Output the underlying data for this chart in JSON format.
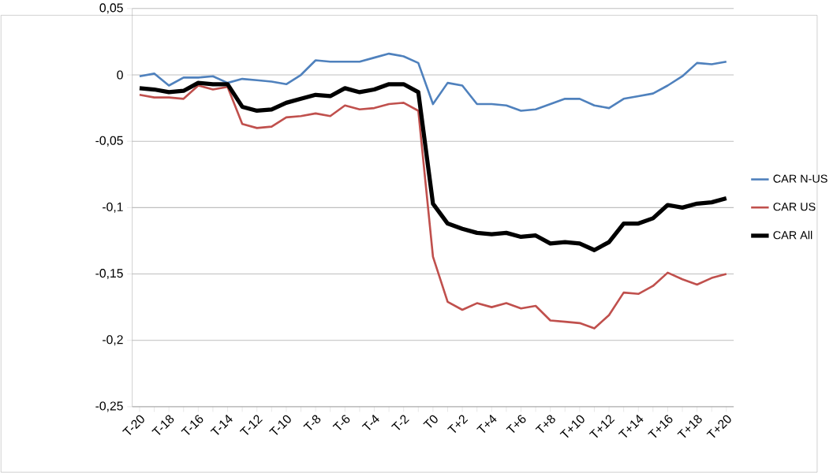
{
  "chart_data": {
    "type": "line",
    "categories": [
      "T-20",
      null,
      "T-18",
      null,
      "T-16",
      null,
      "T-14",
      null,
      "T-12",
      null,
      "T-10",
      null,
      "T-8",
      null,
      "T-6",
      null,
      "T-4",
      null,
      "T-2",
      null,
      "T0",
      null,
      "T+2",
      null,
      "T+4",
      null,
      "T+6",
      null,
      "T+8",
      null,
      "T+10",
      null,
      "T+12",
      null,
      "T+14",
      null,
      "T+16",
      null,
      "T+18",
      null,
      "T+20"
    ],
    "series": [
      {
        "name": "CAR N-US",
        "color": "#4f81bd",
        "values": [
          -0.001,
          0.001,
          -0.008,
          -0.002,
          -0.002,
          -0.001,
          -0.006,
          -0.003,
          -0.004,
          -0.005,
          -0.007,
          0.0,
          0.011,
          0.01,
          0.01,
          0.01,
          0.013,
          0.016,
          0.014,
          0.009,
          -0.022,
          -0.006,
          -0.008,
          -0.022,
          -0.022,
          -0.023,
          -0.027,
          -0.026,
          -0.022,
          -0.018,
          -0.018,
          -0.023,
          -0.025,
          -0.018,
          -0.016,
          -0.014,
          -0.008,
          -0.001,
          0.009,
          0.008,
          0.01
        ]
      },
      {
        "name": "CAR US",
        "color": "#c0504d",
        "values": [
          -0.015,
          -0.017,
          -0.017,
          -0.018,
          -0.008,
          -0.011,
          -0.009,
          -0.037,
          -0.04,
          -0.039,
          -0.032,
          -0.031,
          -0.029,
          -0.031,
          -0.023,
          -0.026,
          -0.025,
          -0.022,
          -0.021,
          -0.027,
          -0.137,
          -0.171,
          -0.177,
          -0.172,
          -0.175,
          -0.172,
          -0.176,
          -0.174,
          -0.185,
          -0.186,
          -0.187,
          -0.191,
          -0.181,
          -0.164,
          -0.165,
          -0.159,
          -0.149,
          -0.154,
          -0.158,
          -0.153,
          -0.15
        ]
      },
      {
        "name": "CAR All",
        "color": "#000000",
        "values": [
          -0.01,
          -0.011,
          -0.013,
          -0.012,
          -0.006,
          -0.007,
          -0.007,
          -0.024,
          -0.027,
          -0.026,
          -0.021,
          -0.018,
          -0.015,
          -0.016,
          -0.01,
          -0.013,
          -0.011,
          -0.007,
          -0.007,
          -0.013,
          -0.097,
          -0.112,
          -0.116,
          -0.119,
          -0.12,
          -0.119,
          -0.122,
          -0.121,
          -0.127,
          -0.126,
          -0.127,
          -0.132,
          -0.126,
          -0.112,
          -0.112,
          -0.108,
          -0.098,
          -0.1,
          -0.097,
          -0.096,
          -0.093
        ]
      }
    ],
    "ylim": [
      -0.25,
      0.05
    ],
    "yticks": [
      {
        "value": -0.25,
        "label": "-0,25"
      },
      {
        "value": -0.2,
        "label": "-0,2"
      },
      {
        "value": -0.15,
        "label": "-0,15"
      },
      {
        "value": -0.1,
        "label": "-0,1"
      },
      {
        "value": -0.05,
        "label": "-0,05"
      },
      {
        "value": 0,
        "label": "0"
      },
      {
        "value": 0.05,
        "label": "0,05"
      }
    ],
    "grid": "y",
    "legend": "right",
    "marker": "none",
    "line_style": "solid"
  }
}
